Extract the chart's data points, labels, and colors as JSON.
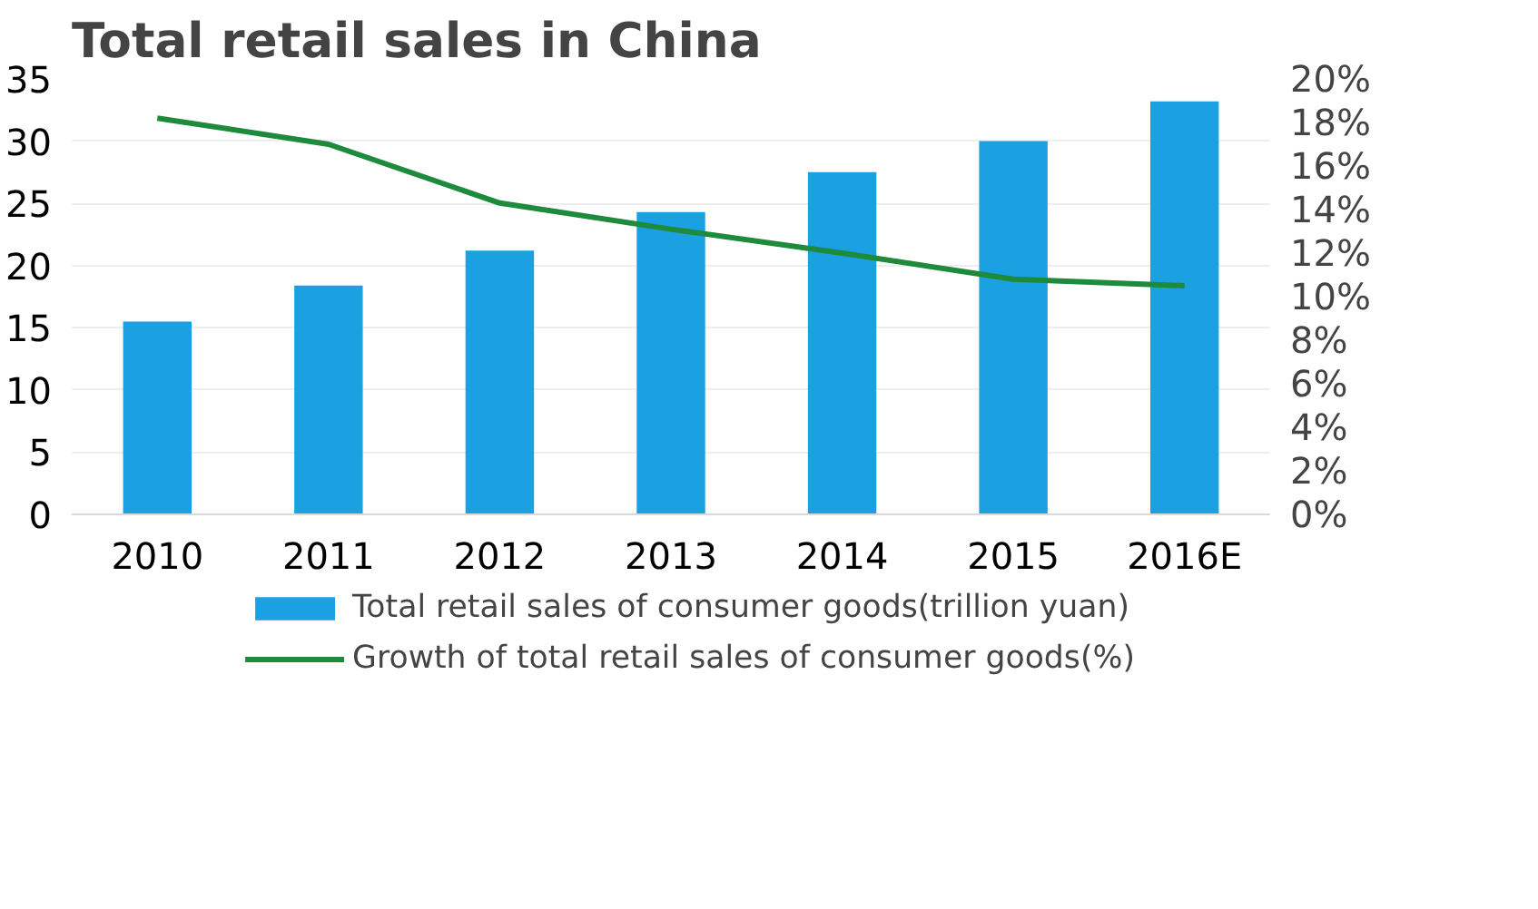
{
  "chart_data": {
    "type": "bar",
    "title": "Total retail sales in China",
    "categories": [
      "2010",
      "2011",
      "2012",
      "2013",
      "2014",
      "2015",
      "2016E"
    ],
    "series": [
      {
        "name": "Total retail sales of consumer goods(trillion yuan)",
        "color": "#1ba1e2",
        "values": [
          15.5,
          18.4,
          21.2,
          24.3,
          27.5,
          30.0,
          33.2
        ]
      },
      {
        "name": "Growth of total retail sales of consumer goods(%)",
        "type": "line",
        "axis": "y2",
        "color": "#1e8a3c",
        "values": [
          18.2,
          17.0,
          14.3,
          13.1,
          12.0,
          10.8,
          10.5
        ]
      }
    ],
    "ylim": [
      0,
      35
    ],
    "yticks": [
      0,
      5,
      10,
      15,
      20,
      25,
      30,
      35
    ],
    "y2lim": [
      0,
      20
    ],
    "y2ticks": [
      {
        "value": 0,
        "label": "0%"
      },
      {
        "value": 2,
        "label": "2%"
      },
      {
        "value": 4,
        "label": "4%"
      },
      {
        "value": 6,
        "label": "6%"
      },
      {
        "value": 8,
        "label": "8%"
      },
      {
        "value": 10,
        "label": "10%"
      },
      {
        "value": 12,
        "label": "12%"
      },
      {
        "value": 14,
        "label": "14%"
      },
      {
        "value": 16,
        "label": "16%"
      },
      {
        "value": 18,
        "label": "18%"
      },
      {
        "value": 20,
        "label": "20%"
      }
    ],
    "grid": "y",
    "legend": "bottom",
    "marker": "none",
    "line_style": "solid"
  }
}
